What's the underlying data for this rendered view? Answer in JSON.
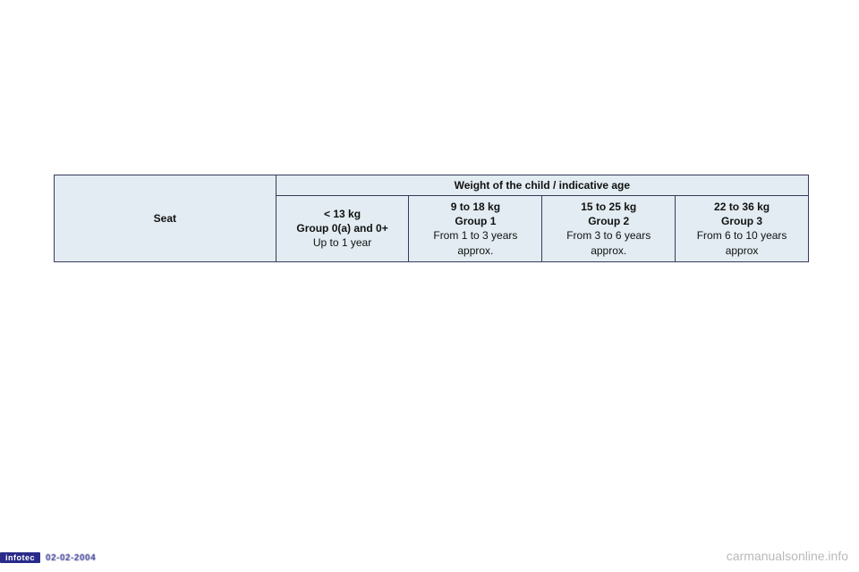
{
  "table": {
    "seat_header": "Seat",
    "weight_header": "Weight of the child / indicative age",
    "groups": [
      {
        "weight": "< 13 kg",
        "group": "Group 0(a) and 0+",
        "age1": "Up to 1 year",
        "age2": ""
      },
      {
        "weight": "9 to 18 kg",
        "group": "Group 1",
        "age1": "From 1 to 3 years",
        "age2": "approx."
      },
      {
        "weight": "15 to 25 kg",
        "group": "Group 2",
        "age1": "From 3 to 6 years",
        "age2": "approx."
      },
      {
        "weight": "22 to 36 kg",
        "group": "Group 3",
        "age1": "From 6 to 10 years",
        "age2": "approx"
      }
    ]
  },
  "footer": {
    "badge": "infotec",
    "date": "02-02-2004"
  },
  "watermark": "carmanualsonline.info",
  "colors": {
    "cell_bg": "#e2ecf2",
    "border": "#3a3a5a",
    "badge_bg": "#2a2a8a",
    "watermark": "#b9b9b9"
  }
}
